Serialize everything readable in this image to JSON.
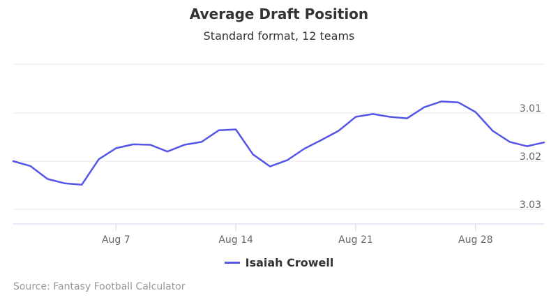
{
  "chart_data": {
    "type": "line",
    "title": "Average Draft Position",
    "subtitle": "Standard format, 12 teams",
    "xlabel": "",
    "ylabel": "",
    "x_ticks": [
      "Aug 7",
      "Aug 14",
      "Aug 21",
      "Aug 28"
    ],
    "y_ticks": [
      "3.01",
      "3.02",
      "3.03"
    ],
    "y_axis_reversed": true,
    "grid": true,
    "legend_position": "bottom",
    "series": [
      {
        "name": "Isaiah Crowell",
        "color": "#5555e8",
        "points": [
          {
            "x": "Aug 1",
            "y": 3.02
          },
          {
            "x": "Aug 2",
            "y": 3.021
          },
          {
            "x": "Aug 3",
            "y": 3.0237
          },
          {
            "x": "Aug 4",
            "y": 3.0246
          },
          {
            "x": "Aug 5",
            "y": 3.0249
          },
          {
            "x": "Aug 6",
            "y": 3.0196
          },
          {
            "x": "Aug 7",
            "y": 3.0173
          },
          {
            "x": "Aug 8",
            "y": 3.0165
          },
          {
            "x": "Aug 9",
            "y": 3.0166
          },
          {
            "x": "Aug 10",
            "y": 3.018
          },
          {
            "x": "Aug 11",
            "y": 3.0166
          },
          {
            "x": "Aug 12",
            "y": 3.016
          },
          {
            "x": "Aug 13",
            "y": 3.0136
          },
          {
            "x": "Aug 14",
            "y": 3.0134
          },
          {
            "x": "Aug 15",
            "y": 3.0186
          },
          {
            "x": "Aug 16",
            "y": 3.0211
          },
          {
            "x": "Aug 17",
            "y": 3.0198
          },
          {
            "x": "Aug 18",
            "y": 3.0174
          },
          {
            "x": "Aug 19",
            "y": 3.0156
          },
          {
            "x": "Aug 20",
            "y": 3.0137
          },
          {
            "x": "Aug 21",
            "y": 3.0108
          },
          {
            "x": "Aug 22",
            "y": 3.0102
          },
          {
            "x": "Aug 23",
            "y": 3.0108
          },
          {
            "x": "Aug 24",
            "y": 3.0111
          },
          {
            "x": "Aug 25",
            "y": 3.0088
          },
          {
            "x": "Aug 26",
            "y": 3.0076
          },
          {
            "x": "Aug 27",
            "y": 3.0078
          },
          {
            "x": "Aug 28",
            "y": 3.0098
          },
          {
            "x": "Aug 29",
            "y": 3.0137
          },
          {
            "x": "Aug 30",
            "y": 3.016
          },
          {
            "x": "Aug 31",
            "y": 3.0169
          },
          {
            "x": "Sep 1",
            "y": 3.0161
          }
        ]
      }
    ],
    "source": "Source: Fantasy Football Calculator"
  }
}
